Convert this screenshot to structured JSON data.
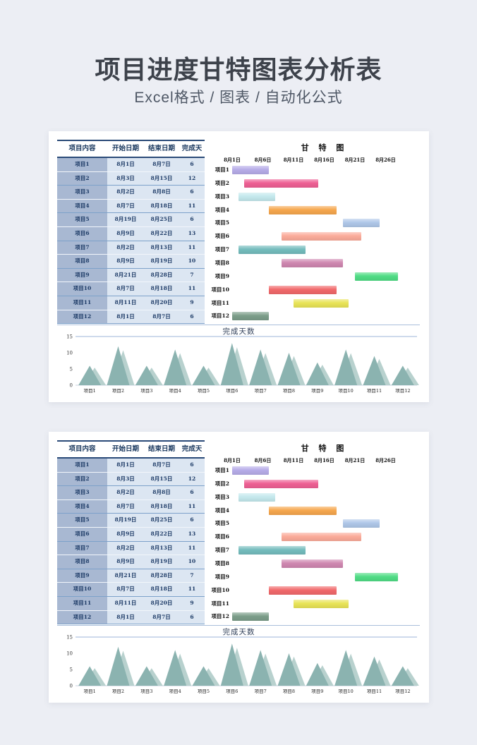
{
  "page": {
    "background": "#eceef4",
    "title": "项目进度甘特图表分析表",
    "subtitle": "Excel格式 / 图表 / 自动化公式",
    "panel_count": 2,
    "panel_note": "two identical preview cards"
  },
  "panel": {
    "table": {
      "headers": [
        "项目内容",
        "开始日期",
        "结束日期",
        "完成天数"
      ],
      "rows": [
        {
          "name": "项目1",
          "start": "8月1日",
          "end": "8月7日",
          "days": "6",
          "start_day": 1,
          "end_day": 7
        },
        {
          "name": "项目2",
          "start": "8月3日",
          "end": "8月15日",
          "days": "12",
          "start_day": 3,
          "end_day": 15
        },
        {
          "name": "项目3",
          "start": "8月2日",
          "end": "8月8日",
          "days": "6",
          "start_day": 2,
          "end_day": 8
        },
        {
          "name": "项目4",
          "start": "8月7日",
          "end": "8月18日",
          "days": "11",
          "start_day": 7,
          "end_day": 18
        },
        {
          "name": "项目5",
          "start": "8月19日",
          "end": "8月25日",
          "days": "6",
          "start_day": 19,
          "end_day": 25
        },
        {
          "name": "项目6",
          "start": "8月9日",
          "end": "8月22日",
          "days": "13",
          "start_day": 9,
          "end_day": 22
        },
        {
          "name": "项目7",
          "start": "8月2日",
          "end": "8月13日",
          "days": "11",
          "start_day": 2,
          "end_day": 13
        },
        {
          "name": "项目8",
          "start": "8月9日",
          "end": "8月19日",
          "days": "10",
          "start_day": 9,
          "end_day": 19
        },
        {
          "name": "项目9",
          "start": "8月21日",
          "end": "8月28日",
          "days": "7",
          "start_day": 21,
          "end_day": 28
        },
        {
          "name": "项目10",
          "start": "8月7日",
          "end": "8月18日",
          "days": "11",
          "start_day": 7,
          "end_day": 18
        },
        {
          "name": "项目11",
          "start": "8月11日",
          "end": "8月20日",
          "days": "9",
          "start_day": 11,
          "end_day": 20
        },
        {
          "name": "项目12",
          "start": "8月1日",
          "end": "8月7日",
          "days": "6",
          "start_day": 1,
          "end_day": 7
        }
      ]
    },
    "gantt": {
      "title": "甘 特 图",
      "axis_ticks": [
        {
          "label": "8月1日",
          "day": 1
        },
        {
          "label": "8月6日",
          "day": 6
        },
        {
          "label": "8月11日",
          "day": 11
        },
        {
          "label": "8月16日",
          "day": 16
        },
        {
          "label": "8月21日",
          "day": 21
        },
        {
          "label": "8月26日",
          "day": 26
        }
      ],
      "day_range": [
        1,
        31
      ],
      "bar_colors": [
        "#b6ace8",
        "#ee6094",
        "#c4e9ed",
        "#f6a74e",
        "#afc7e8",
        "#fbab9a",
        "#74bcbd",
        "#cf87b0",
        "#50dc85",
        "#f1696b",
        "#e9e457",
        "#7c9e8a"
      ]
    },
    "days_chart": {
      "title": "完成天数",
      "categories": [
        "项目1",
        "项目2",
        "项目3",
        "项目4",
        "项目5",
        "项目6",
        "项目7",
        "项目8",
        "项目9",
        "项目10",
        "项目11",
        "项目12"
      ],
      "values": [
        6,
        12,
        6,
        11,
        6,
        13,
        11,
        10,
        7,
        11,
        9,
        6
      ],
      "yticks": [
        0,
        5,
        10,
        15
      ],
      "ylim": [
        0,
        15
      ],
      "colors": {
        "main": "#8bb3b0",
        "light": "#b8d1ce"
      }
    }
  },
  "chart_data": [
    {
      "type": "bar",
      "subtype": "horizontal-gantt",
      "title": "甘 特 图",
      "categories": [
        "项目1",
        "项目2",
        "项目3",
        "项目4",
        "项目5",
        "项目6",
        "项目7",
        "项目8",
        "项目9",
        "项目10",
        "项目11",
        "项目12"
      ],
      "series": [
        {
          "name": "开始日期(天)",
          "values": [
            1,
            3,
            2,
            7,
            19,
            9,
            2,
            9,
            21,
            7,
            11,
            1
          ]
        },
        {
          "name": "结束日期(天)",
          "values": [
            7,
            15,
            8,
            18,
            25,
            22,
            13,
            19,
            28,
            18,
            20,
            7
          ]
        },
        {
          "name": "完成天数",
          "values": [
            6,
            12,
            6,
            11,
            6,
            13,
            11,
            10,
            7,
            11,
            9,
            6
          ]
        }
      ],
      "xlabel": "",
      "ylabel": "",
      "x_tick_labels": [
        "8月1日",
        "8月6日",
        "8月11日",
        "8月16日",
        "8月21日",
        "8月26日"
      ],
      "xlim_days": [
        1,
        31
      ],
      "grid": false,
      "legend_position": "none",
      "bar_colors": [
        "#b6ace8",
        "#ee6094",
        "#c4e9ed",
        "#f6a74e",
        "#afc7e8",
        "#fbab9a",
        "#74bcbd",
        "#cf87b0",
        "#50dc85",
        "#f1696b",
        "#e9e457",
        "#7c9e8a"
      ],
      "note": "appears twice — both preview cards are identical"
    },
    {
      "type": "area",
      "subtype": "triangle-peaks",
      "title": "完成天数",
      "categories": [
        "项目1",
        "项目2",
        "项目3",
        "项目4",
        "项目5",
        "项目6",
        "项目7",
        "项目8",
        "项目9",
        "项目10",
        "项目11",
        "项目12"
      ],
      "values": [
        6,
        12,
        6,
        11,
        6,
        13,
        11,
        10,
        7,
        11,
        9,
        6
      ],
      "xlabel": "",
      "ylabel": "",
      "ylim": [
        0,
        15
      ],
      "yticks": [
        0,
        5,
        10,
        15
      ],
      "grid": "top line only",
      "legend_position": "none",
      "colors": {
        "main": "#8bb3b0",
        "light": "#b8d1ce"
      },
      "note": "appears twice — both preview cards are identical"
    }
  ]
}
